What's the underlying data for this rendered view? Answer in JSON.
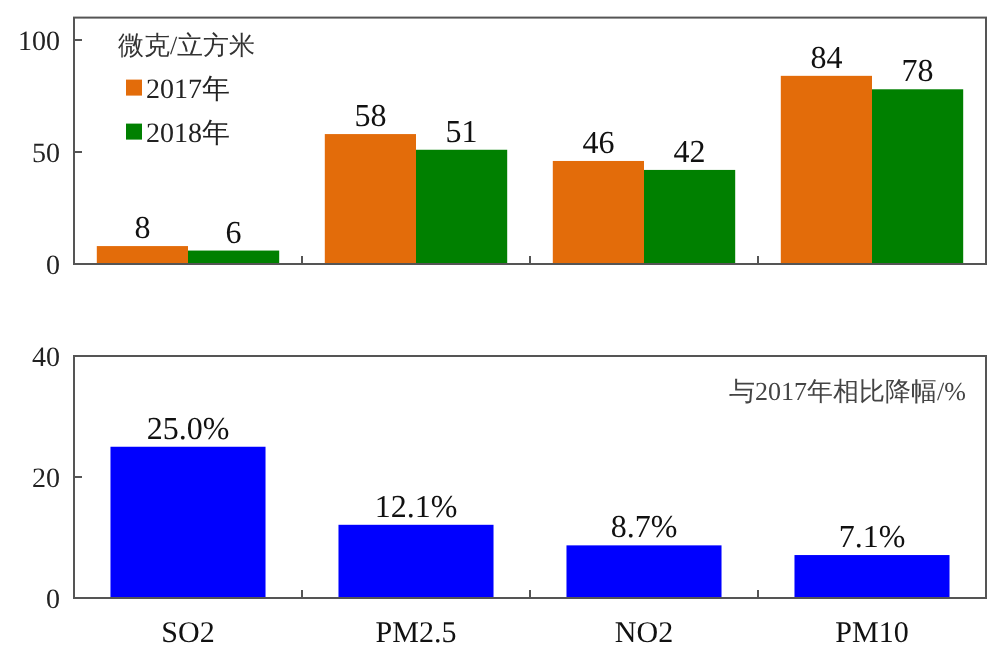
{
  "chart_data": [
    {
      "type": "bar",
      "categories": [
        null,
        null,
        null,
        null
      ],
      "legend_title": "微克/立方米",
      "legend": "top left",
      "data_labels": true,
      "ylim": [
        0,
        110
      ],
      "yticks": [
        0,
        50,
        100
      ],
      "tick_labels": "y",
      "series": [
        {
          "name": "2017年",
          "color": "#e36c0a",
          "values": [
            8,
            58,
            46,
            84
          ]
        },
        {
          "name": "2018年",
          "color": "#008000",
          "values": [
            6,
            51,
            42,
            78
          ]
        }
      ]
    },
    {
      "type": "bar",
      "categories": [
        "SO2",
        "PM2.5",
        "NO2",
        "PM10"
      ],
      "annotations": [
        "与2017年相比降幅/%"
      ],
      "ylim": [
        0,
        40
      ],
      "yticks": [
        0,
        20,
        40
      ],
      "series": [
        {
          "color": "#0000ff",
          "values": [
            25.0,
            12.1,
            8.7,
            7.1
          ],
          "value_labels": [
            "25.0%",
            "12.1%",
            "8.7%",
            "7.1%"
          ]
        }
      ]
    }
  ]
}
